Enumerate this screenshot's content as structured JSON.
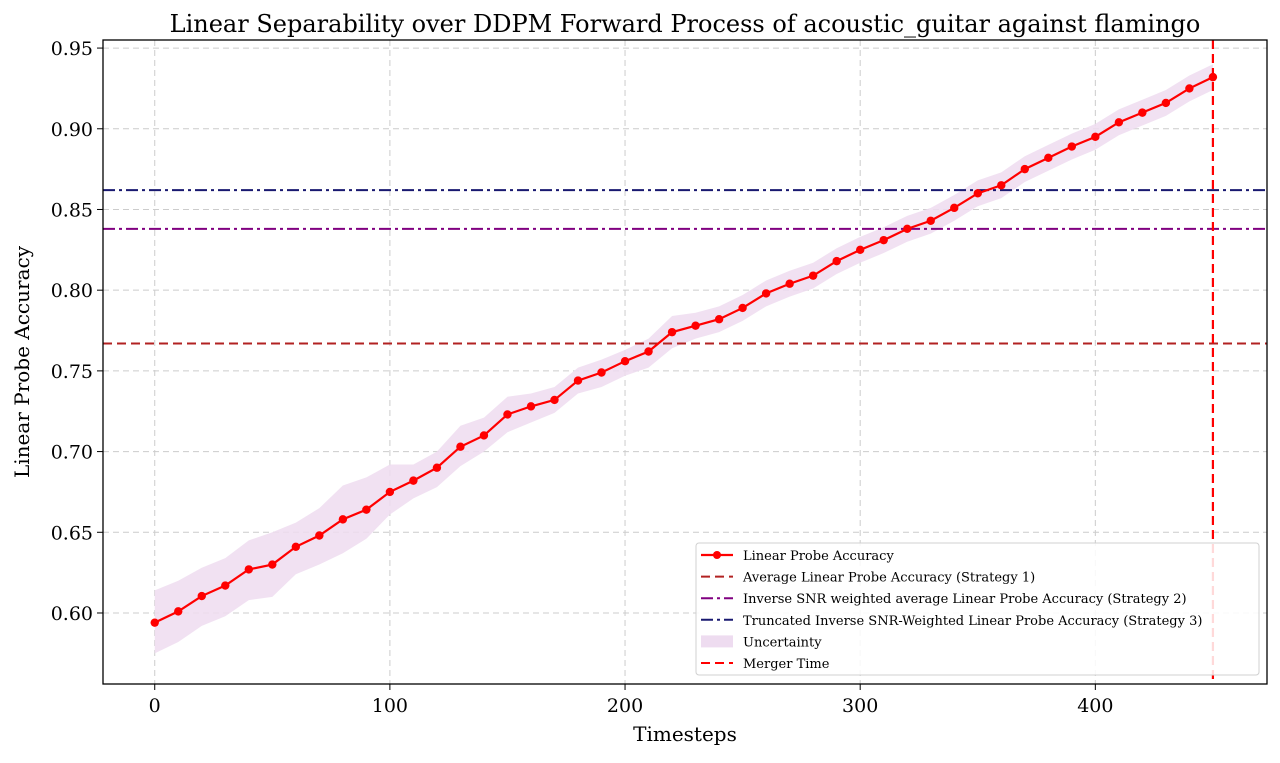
{
  "chart_data": {
    "type": "line",
    "title": "Linear Separability over DDPM Forward Process of acoustic_guitar against flamingo",
    "xlabel": "Timesteps",
    "ylabel": "Linear Probe Accuracy",
    "xlim": [
      -22,
      473
    ],
    "ylim": [
      0.556,
      0.955
    ],
    "xticks": [
      0,
      100,
      200,
      300,
      400
    ],
    "yticks": [
      0.6,
      0.65,
      0.7,
      0.75,
      0.8,
      0.85,
      0.9,
      0.95
    ],
    "xtick_labels": [
      "0",
      "100",
      "200",
      "300",
      "400"
    ],
    "ytick_labels": [
      "0.60",
      "0.65",
      "0.70",
      "0.75",
      "0.80",
      "0.85",
      "0.90",
      "0.95"
    ],
    "grid": true,
    "legend_position": "bottom-right",
    "x": [
      0,
      10,
      20,
      30,
      40,
      50,
      60,
      70,
      80,
      90,
      100,
      110,
      120,
      130,
      140,
      150,
      160,
      170,
      180,
      190,
      200,
      210,
      220,
      230,
      240,
      250,
      260,
      270,
      280,
      290,
      300,
      310,
      320,
      330,
      340,
      350,
      360,
      370,
      380,
      390,
      400,
      410,
      420,
      430,
      440,
      450
    ],
    "series": [
      {
        "name": "Linear Probe Accuracy",
        "color": "#ff0000",
        "values": [
          0.594,
          0.601,
          0.6105,
          0.617,
          0.627,
          0.63,
          0.641,
          0.648,
          0.658,
          0.664,
          0.675,
          0.682,
          0.69,
          0.703,
          0.71,
          0.723,
          0.728,
          0.732,
          0.744,
          0.749,
          0.756,
          0.762,
          0.774,
          0.778,
          0.782,
          0.789,
          0.798,
          0.804,
          0.809,
          0.818,
          0.825,
          0.831,
          0.838,
          0.843,
          0.851,
          0.86,
          0.865,
          0.875,
          0.882,
          0.889,
          0.895,
          0.904,
          0.91,
          0.916,
          0.925,
          0.932
        ]
      },
      {
        "name": "Average Linear Probe Accuracy (Strategy 1)",
        "color": "#b22222",
        "style": "dashed",
        "value": 0.767
      },
      {
        "name": "Inverse SNR weighted average Linear Probe Accuracy (Strategy 2)",
        "color": "#800080",
        "style": "dashdot",
        "value": 0.838
      },
      {
        "name": "Truncated Inverse SNR-Weighted Linear Probe Accuracy (Strategy 3)",
        "color": "#191970",
        "style": "dashdot",
        "value": 0.862
      },
      {
        "name": "Uncertainty",
        "color": "#eedcf0",
        "lower": [
          0.575,
          0.582,
          0.592,
          0.598,
          0.608,
          0.61,
          0.624,
          0.63,
          0.637,
          0.646,
          0.661,
          0.671,
          0.678,
          0.691,
          0.7,
          0.712,
          0.718,
          0.724,
          0.736,
          0.74,
          0.747,
          0.752,
          0.764,
          0.77,
          0.774,
          0.781,
          0.79,
          0.796,
          0.801,
          0.81,
          0.817,
          0.823,
          0.83,
          0.835,
          0.843,
          0.852,
          0.857,
          0.867,
          0.874,
          0.881,
          0.887,
          0.896,
          0.902,
          0.908,
          0.917,
          0.924
        ],
        "upper": [
          0.614,
          0.62,
          0.628,
          0.634,
          0.645,
          0.65,
          0.656,
          0.665,
          0.679,
          0.684,
          0.692,
          0.692,
          0.7,
          0.716,
          0.721,
          0.734,
          0.736,
          0.74,
          0.752,
          0.757,
          0.763,
          0.77,
          0.784,
          0.786,
          0.79,
          0.797,
          0.806,
          0.812,
          0.817,
          0.826,
          0.833,
          0.839,
          0.846,
          0.851,
          0.859,
          0.868,
          0.873,
          0.883,
          0.89,
          0.897,
          0.903,
          0.912,
          0.918,
          0.924,
          0.933,
          0.94
        ]
      },
      {
        "name": "Merger Time",
        "color": "#ff0000",
        "style": "dashed",
        "x_value": 450
      }
    ]
  }
}
